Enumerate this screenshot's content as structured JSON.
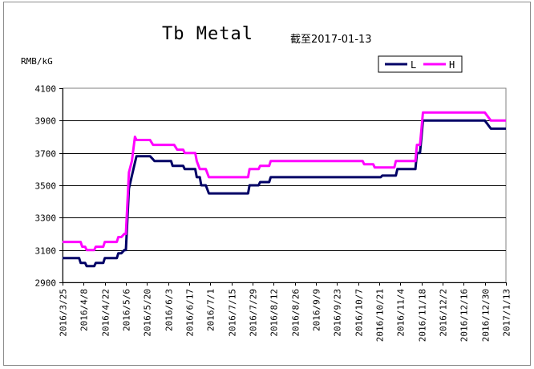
{
  "chart_data": {
    "type": "line",
    "title": "Tb Metal",
    "subtitle": "截至2017-01-13",
    "ylabel": "RMB/kG",
    "ylim": [
      2900,
      4100
    ],
    "yticks": [
      2900,
      3100,
      3300,
      3500,
      3700,
      3900,
      4100
    ],
    "grid": true,
    "legend_position": "top-right",
    "x_range": [
      "2016-03-25",
      "2017-01-13"
    ],
    "x_tick_labels": [
      "2016/3/25",
      "2016/4/8",
      "2016/4/22",
      "2016/5/6",
      "2016/5/20",
      "2016/6/3",
      "2016/6/17",
      "2016/7/1",
      "2016/7/15",
      "2016/7/29",
      "2016/8/12",
      "2016/8/26",
      "2016/9/9",
      "2016/9/23",
      "2016/10/7",
      "2016/10/21",
      "2016/11/4",
      "2016/11/18",
      "2016/12/2",
      "2016/12/16",
      "2016/12/30",
      "2017/1/13"
    ],
    "x_tick_dates": [
      "2016-03-25",
      "2016-04-08",
      "2016-04-22",
      "2016-05-06",
      "2016-05-20",
      "2016-06-03",
      "2016-06-17",
      "2016-07-01",
      "2016-07-15",
      "2016-07-29",
      "2016-08-12",
      "2016-08-26",
      "2016-09-09",
      "2016-09-23",
      "2016-10-07",
      "2016-10-21",
      "2016-11-04",
      "2016-11-18",
      "2016-12-02",
      "2016-12-16",
      "2016-12-30",
      "2017-01-13"
    ],
    "series": [
      {
        "name": "L",
        "color": "#000066",
        "points": [
          [
            "2016-03-25",
            3050
          ],
          [
            "2016-04-05",
            3050
          ],
          [
            "2016-04-06",
            3020
          ],
          [
            "2016-04-09",
            3020
          ],
          [
            "2016-04-10",
            3000
          ],
          [
            "2016-04-15",
            3000
          ],
          [
            "2016-04-16",
            3020
          ],
          [
            "2016-04-21",
            3020
          ],
          [
            "2016-04-22",
            3050
          ],
          [
            "2016-04-30",
            3050
          ],
          [
            "2016-05-01",
            3080
          ],
          [
            "2016-05-03",
            3080
          ],
          [
            "2016-05-05",
            3100
          ],
          [
            "2016-05-06",
            3100
          ],
          [
            "2016-05-08",
            3480
          ],
          [
            "2016-05-11",
            3600
          ],
          [
            "2016-05-13",
            3680
          ],
          [
            "2016-05-22",
            3680
          ],
          [
            "2016-05-24",
            3660
          ],
          [
            "2016-05-25",
            3650
          ],
          [
            "2016-06-03",
            3650
          ],
          [
            "2016-06-05",
            3650
          ],
          [
            "2016-06-06",
            3620
          ],
          [
            "2016-06-13",
            3620
          ],
          [
            "2016-06-14",
            3600
          ],
          [
            "2016-06-21",
            3600
          ],
          [
            "2016-06-22",
            3550
          ],
          [
            "2016-06-24",
            3550
          ],
          [
            "2016-06-25",
            3500
          ],
          [
            "2016-06-28",
            3500
          ],
          [
            "2016-06-30",
            3450
          ],
          [
            "2016-07-26",
            3450
          ],
          [
            "2016-07-27",
            3500
          ],
          [
            "2016-08-02",
            3500
          ],
          [
            "2016-08-03",
            3520
          ],
          [
            "2016-08-09",
            3520
          ],
          [
            "2016-08-10",
            3550
          ],
          [
            "2016-10-22",
            3550
          ],
          [
            "2016-10-23",
            3560
          ],
          [
            "2016-11-01",
            3560
          ],
          [
            "2016-11-02",
            3600
          ],
          [
            "2016-11-14",
            3600
          ],
          [
            "2016-11-15",
            3700
          ],
          [
            "2016-11-17",
            3700
          ],
          [
            "2016-11-18",
            3800
          ],
          [
            "2016-11-19",
            3900
          ],
          [
            "2016-12-30",
            3900
          ],
          [
            "2017-01-03",
            3850
          ],
          [
            "2017-01-13",
            3850
          ]
        ]
      },
      {
        "name": "H",
        "color": "#ff00ff",
        "points": [
          [
            "2016-03-25",
            3150
          ],
          [
            "2016-04-06",
            3150
          ],
          [
            "2016-04-07",
            3120
          ],
          [
            "2016-04-09",
            3120
          ],
          [
            "2016-04-10",
            3100
          ],
          [
            "2016-04-15",
            3100
          ],
          [
            "2016-04-16",
            3120
          ],
          [
            "2016-04-21",
            3120
          ],
          [
            "2016-04-22",
            3150
          ],
          [
            "2016-04-30",
            3150
          ],
          [
            "2016-05-01",
            3180
          ],
          [
            "2016-05-03",
            3180
          ],
          [
            "2016-05-05",
            3200
          ],
          [
            "2016-05-06",
            3200
          ],
          [
            "2016-05-08",
            3580
          ],
          [
            "2016-05-10",
            3650
          ],
          [
            "2016-05-12",
            3800
          ],
          [
            "2016-05-13",
            3780
          ],
          [
            "2016-05-22",
            3780
          ],
          [
            "2016-05-24",
            3750
          ],
          [
            "2016-06-07",
            3750
          ],
          [
            "2016-06-09",
            3720
          ],
          [
            "2016-06-13",
            3720
          ],
          [
            "2016-06-14",
            3700
          ],
          [
            "2016-06-21",
            3700
          ],
          [
            "2016-06-22",
            3650
          ],
          [
            "2016-06-24",
            3600
          ],
          [
            "2016-06-28",
            3600
          ],
          [
            "2016-06-30",
            3550
          ],
          [
            "2016-07-26",
            3550
          ],
          [
            "2016-07-27",
            3600
          ],
          [
            "2016-08-02",
            3600
          ],
          [
            "2016-08-03",
            3620
          ],
          [
            "2016-08-09",
            3620
          ],
          [
            "2016-08-10",
            3650
          ],
          [
            "2016-10-05",
            3650
          ],
          [
            "2016-10-06",
            3650
          ],
          [
            "2016-10-10",
            3650
          ],
          [
            "2016-10-11",
            3630
          ],
          [
            "2016-10-17",
            3630
          ],
          [
            "2016-10-18",
            3610
          ],
          [
            "2016-10-31",
            3610
          ],
          [
            "2016-11-01",
            3650
          ],
          [
            "2016-11-14",
            3650
          ],
          [
            "2016-11-15",
            3750
          ],
          [
            "2016-11-17",
            3750
          ],
          [
            "2016-11-18",
            3850
          ],
          [
            "2016-11-19",
            3950
          ],
          [
            "2016-12-30",
            3950
          ],
          [
            "2017-01-03",
            3900
          ],
          [
            "2017-01-13",
            3900
          ]
        ]
      }
    ]
  }
}
